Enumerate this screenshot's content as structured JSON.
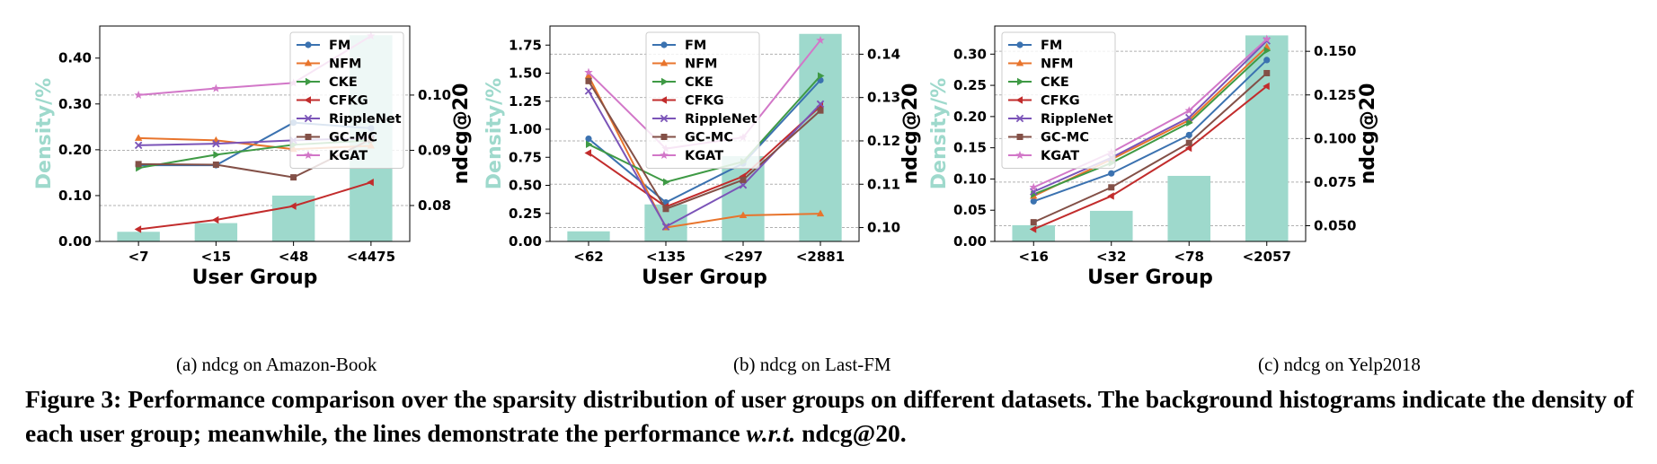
{
  "chart_data": [
    {
      "type": "bar+line",
      "categories": [
        "<7",
        "<15",
        "<48",
        "<4475"
      ],
      "xlabel": "User Group",
      "ylabel_left": "Density/%",
      "ylabel_right": "ndcg@20",
      "left_ylim": [
        0,
        0.47
      ],
      "left_ticks": [
        "0.00",
        "0.10",
        "0.20",
        "0.30",
        "0.40"
      ],
      "right_ylim": [
        0.0735,
        0.1125
      ],
      "right_ticks": [
        "0.08",
        "0.09",
        "0.10"
      ],
      "legend_position": "top-right",
      "grid": "horizontal, right axis, dashed",
      "bars": [
        0.021,
        0.04,
        0.1,
        0.45
      ],
      "series": [
        {
          "name": "FM",
          "values": [
            0.0873,
            0.0873,
            0.095,
            0.094
          ]
        },
        {
          "name": "NFM",
          "values": [
            0.0922,
            0.0918,
            0.0902,
            0.0908
          ]
        },
        {
          "name": "CKE",
          "values": [
            0.0868,
            0.0892,
            0.091,
            0.0918
          ]
        },
        {
          "name": "CFKG",
          "values": [
            0.0757,
            0.0774,
            0.0799,
            0.0842
          ]
        },
        {
          "name": "RippleNet",
          "values": [
            0.0909,
            0.0912,
            0.0918,
            0.0922
          ]
        },
        {
          "name": "GC-MC",
          "values": [
            0.0875,
            0.0874,
            0.0851,
            0.092
          ]
        },
        {
          "name": "KGAT",
          "values": [
            0.1,
            0.1012,
            0.1022,
            0.1107
          ]
        }
      ]
    },
    {
      "type": "bar+line",
      "categories": [
        "<62",
        "<135",
        "<297",
        "<2881"
      ],
      "xlabel": "User Group",
      "ylabel_left": "Density/%",
      "ylabel_right": "ndcg@20",
      "left_ylim": [
        0,
        1.92
      ],
      "left_ticks": [
        "0.00",
        "0.25",
        "0.50",
        "0.75",
        "1.00",
        "1.25",
        "1.50",
        "1.75"
      ],
      "right_ylim": [
        0.0968,
        0.1465
      ],
      "right_ticks": [
        "0.10",
        "0.11",
        "0.12",
        "0.13",
        "0.14"
      ],
      "legend_position": "top-left",
      "grid": "horizontal, right axis, dashed",
      "bars": [
        0.09,
        0.33,
        0.76,
        1.85
      ],
      "series": [
        {
          "name": "FM",
          "values": [
            0.1205,
            0.1058,
            0.1148,
            0.134
          ]
        },
        {
          "name": "NFM",
          "values": [
            0.135,
            0.1,
            0.1028,
            0.1032
          ]
        },
        {
          "name": "CKE",
          "values": [
            0.1192,
            0.1105,
            0.1152,
            0.135
          ]
        },
        {
          "name": "CFKG",
          "values": [
            0.1172,
            0.1048,
            0.1118,
            0.128
          ]
        },
        {
          "name": "RippleNet",
          "values": [
            0.1315,
            0.1002,
            0.1098,
            0.1285
          ]
        },
        {
          "name": "GC-MC",
          "values": [
            0.1338,
            0.1043,
            0.111,
            0.127
          ]
        },
        {
          "name": "KGAT",
          "values": [
            0.1358,
            0.1182,
            0.1208,
            0.1432
          ]
        }
      ]
    },
    {
      "type": "bar+line",
      "categories": [
        "<16",
        "<32",
        "<78",
        "<2057"
      ],
      "xlabel": "User Group",
      "ylabel_left": "Density/%",
      "ylabel_right": "ndcg@20",
      "left_ylim": [
        0,
        0.345
      ],
      "left_ticks": [
        "0.00",
        "0.05",
        "0.10",
        "0.15",
        "0.20",
        "0.25",
        "0.30"
      ],
      "right_ylim": [
        0.041,
        0.1645
      ],
      "right_ticks": [
        "0.050",
        "0.075",
        "0.100",
        "0.125",
        "0.150"
      ],
      "legend_position": "top-left",
      "grid": "horizontal, right axis, dashed",
      "bars": [
        0.026,
        0.049,
        0.105,
        0.33
      ],
      "series": [
        {
          "name": "FM",
          "values": [
            0.064,
            0.08,
            0.102,
            0.145
          ]
        },
        {
          "name": "NFM",
          "values": [
            0.067,
            0.088,
            0.1105,
            0.1525
          ]
        },
        {
          "name": "CKE",
          "values": [
            0.068,
            0.086,
            0.109,
            0.1505
          ]
        },
        {
          "name": "CFKG",
          "values": [
            0.048,
            0.067,
            0.0945,
            0.13
          ]
        },
        {
          "name": "RippleNet",
          "values": [
            0.0695,
            0.089,
            0.112,
            0.156
          ]
        },
        {
          "name": "GC-MC",
          "values": [
            0.052,
            0.072,
            0.0975,
            0.1375
          ]
        },
        {
          "name": "KGAT",
          "values": [
            0.072,
            0.092,
            0.116,
            0.157
          ]
        }
      ]
    }
  ],
  "series_colors": {
    "FM": "#3b72b0",
    "NFM": "#e8742c",
    "CKE": "#3f9a45",
    "CFKG": "#c22c2c",
    "RippleNet": "#7b54b8",
    "GC-MC": "#835047",
    "KGAT": "#d277c8"
  },
  "series_markers": {
    "FM": "circle",
    "NFM": "triangle-up",
    "CKE": "triangle-right",
    "CFKG": "triangle-left",
    "RippleNet": "x",
    "GC-MC": "square",
    "KGAT": "star"
  },
  "bar_color": "#9ed9cc",
  "density_label_color": "#9ed9cc",
  "subcaptions": [
    "(a)  ndcg on Amazon-Book",
    "(b)  ndcg on Last-FM",
    "(c)  ndcg on Yelp2018"
  ],
  "figure_caption": {
    "prefix": "Figure 3: Performance comparison over the sparsity distribution of user groups on different datasets. The background histograms indicate the density of each user group; meanwhile, the lines demonstrate the performance ",
    "italic": "w.r.t.",
    "suffix": " ndcg@20."
  }
}
